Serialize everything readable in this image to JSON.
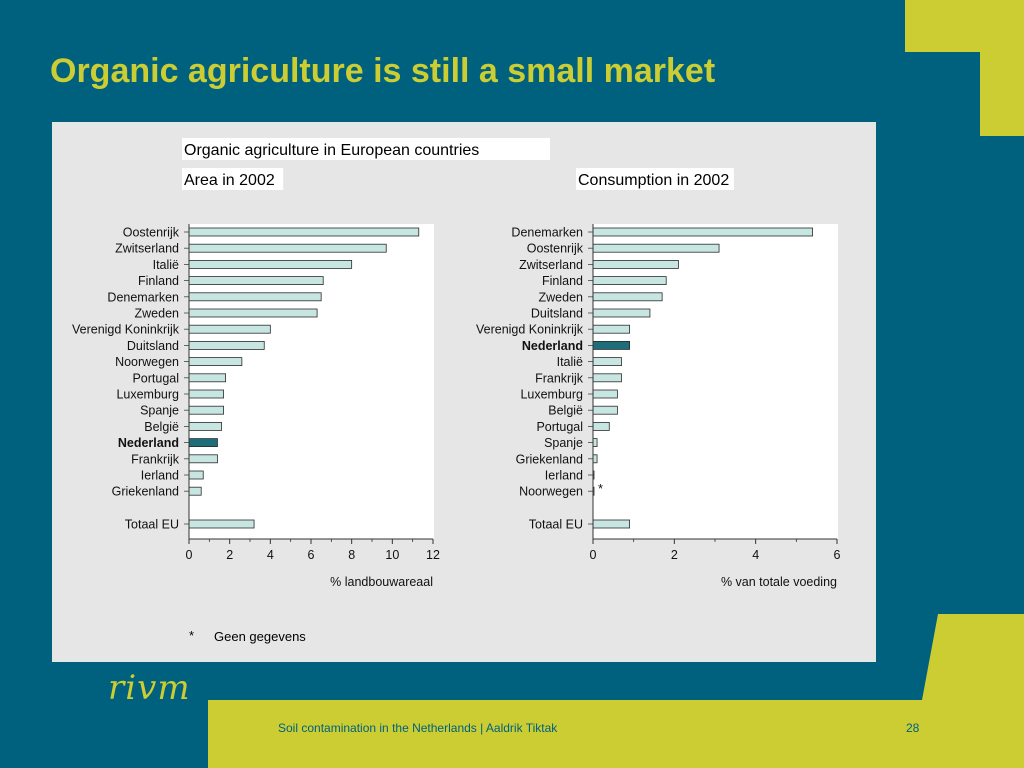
{
  "slide": {
    "title": "Organic agriculture is still a small market",
    "footer_text": "Soil contamination in the Netherlands | Aaldrik Tiktak",
    "page_number": "28",
    "logo_text": "rivm"
  },
  "colors": {
    "background": "#00617f",
    "accent": "#cbcd32",
    "panel": "#e6e6e6",
    "bar_fill": "#c7e6e2",
    "bar_highlight": "#1d6d7a"
  },
  "figure": {
    "heading": "Organic agriculture in European countries",
    "footnote_marker": "*",
    "footnote_text": "Geen gegevens"
  },
  "chart_data": [
    {
      "type": "bar",
      "orientation": "horizontal",
      "title": "Area in 2002",
      "xlabel": "% landbouwareaal",
      "ylabel": "",
      "xlim": [
        0,
        12
      ],
      "xticks": [
        0,
        2,
        4,
        6,
        8,
        10,
        12
      ],
      "highlight": "Nederland",
      "categories": [
        "Oostenrijk",
        "Zwitserland",
        "Italië",
        "Finland",
        "Denemarken",
        "Zweden",
        "Verenigd Koninkrijk",
        "Duitsland",
        "Noorwegen",
        "Portugal",
        "Luxemburg",
        "Spanje",
        "België",
        "Nederland",
        "Frankrijk",
        "Ierland",
        "Griekenland",
        "Totaal EU"
      ],
      "values": [
        11.3,
        9.7,
        8.0,
        6.6,
        6.5,
        6.3,
        4.0,
        3.7,
        2.6,
        1.8,
        1.7,
        1.7,
        1.6,
        1.4,
        1.4,
        0.7,
        0.6,
        3.2
      ],
      "annotations": []
    },
    {
      "type": "bar",
      "orientation": "horizontal",
      "title": "Consumption in 2002",
      "xlabel": "% van totale voeding",
      "ylabel": "",
      "xlim": [
        0,
        6
      ],
      "xticks": [
        0,
        2,
        4,
        6
      ],
      "highlight": "Nederland",
      "categories": [
        "Denemarken",
        "Oostenrijk",
        "Zwitserland",
        "Finland",
        "Zweden",
        "Duitsland",
        "Verenigd Koninkrijk",
        "Nederland",
        "Italië",
        "Frankrijk",
        "Luxemburg",
        "België",
        "Portugal",
        "Spanje",
        "Griekenland",
        "Ierland",
        "Noorwegen",
        "Totaal EU"
      ],
      "values": [
        5.4,
        3.1,
        2.1,
        1.8,
        1.7,
        1.4,
        0.9,
        0.9,
        0.7,
        0.7,
        0.6,
        0.6,
        0.4,
        0.1,
        0.1,
        0.02,
        0.02,
        0.9
      ],
      "annotations": [
        {
          "category": "Noorwegen",
          "text": "*"
        }
      ]
    }
  ]
}
